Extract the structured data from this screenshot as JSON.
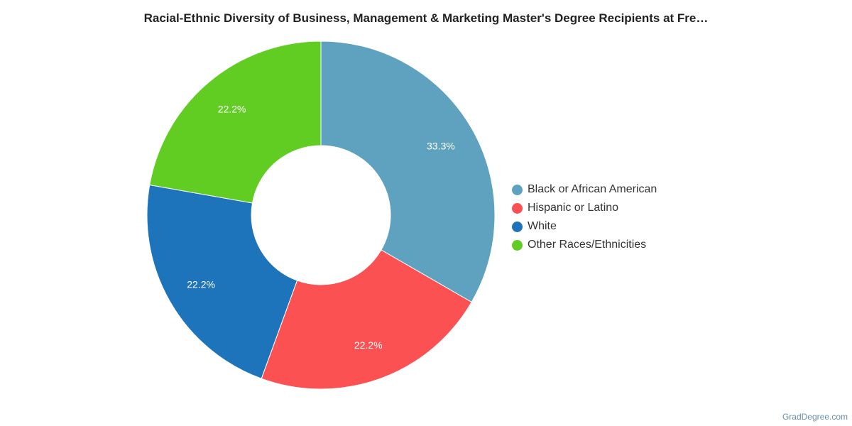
{
  "chart_data": {
    "type": "pie",
    "variant": "donut",
    "title": "Racial-Ethnic Diversity of Business, Management & Marketing Master's Degree Recipients at Fre…",
    "slices": [
      {
        "label": "Black or African American",
        "value": 33.3,
        "value_label": "33.3%",
        "color": "#5fa2c0"
      },
      {
        "label": "Hispanic or Latino",
        "value": 22.2,
        "value_label": "22.2%",
        "color": "#fc5153"
      },
      {
        "label": "White",
        "value": 22.2,
        "value_label": "22.2%",
        "color": "#1e74ba"
      },
      {
        "label": "Other Races/Ethnicities",
        "value": 22.2,
        "value_label": "22.2%",
        "color": "#61cd23"
      }
    ],
    "legend_position": "right"
  },
  "credit": "GradDegree.com"
}
